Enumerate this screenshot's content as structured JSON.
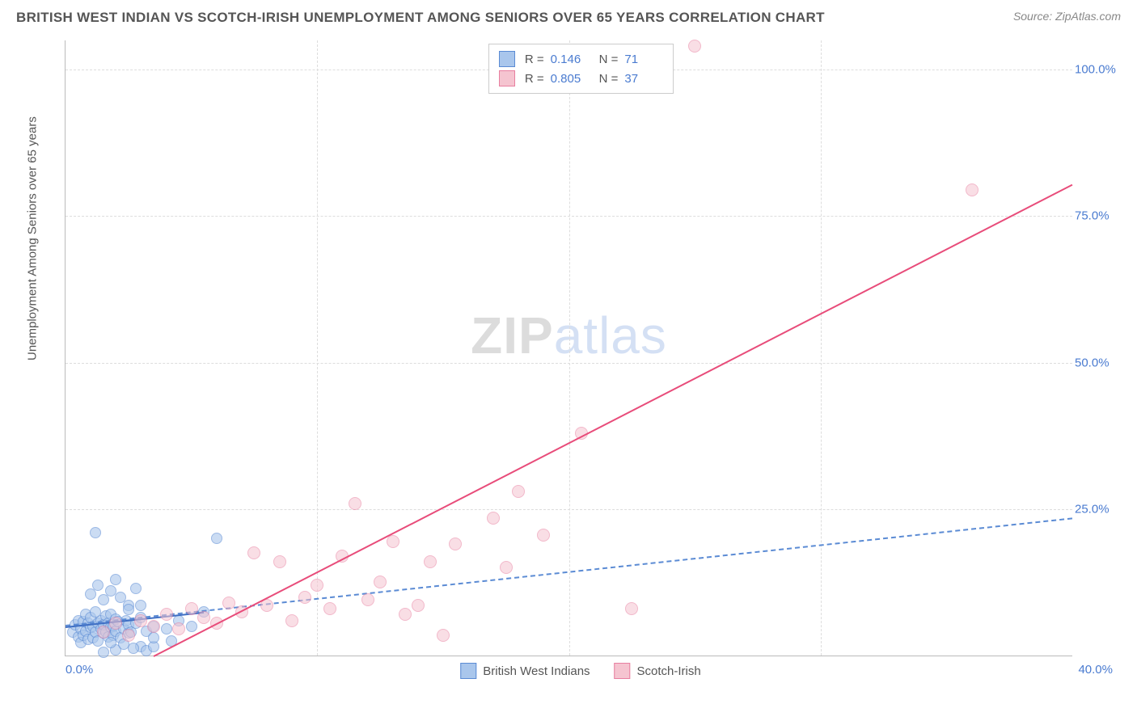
{
  "header": {
    "title": "BRITISH WEST INDIAN VS SCOTCH-IRISH UNEMPLOYMENT AMONG SENIORS OVER 65 YEARS CORRELATION CHART",
    "source_prefix": "Source: ",
    "source_name": "ZipAtlas.com"
  },
  "chart": {
    "type": "scatter",
    "ylabel": "Unemployment Among Seniors over 65 years",
    "xlim": [
      0,
      40
    ],
    "ylim": [
      0,
      105
    ],
    "background_color": "#ffffff",
    "grid_color": "#dddddd",
    "axis_color": "#bbbbbb",
    "tick_label_color": "#4a7bd0",
    "tick_fontsize": 15,
    "label_fontsize": 15,
    "yticks": [
      {
        "value": 25,
        "label": "25.0%"
      },
      {
        "value": 50,
        "label": "50.0%"
      },
      {
        "value": 75,
        "label": "75.0%"
      },
      {
        "value": 100,
        "label": "100.0%"
      }
    ],
    "xticks_origin": {
      "value": 0,
      "label": "0.0%"
    },
    "xticks_end": {
      "value": 40,
      "label": "40.0%"
    },
    "x_gridlines_at": [
      10,
      20,
      30
    ],
    "watermark": {
      "part1": "ZIP",
      "part2": "atlas"
    },
    "series": [
      {
        "key": "bwi",
        "label": "British West Indians",
        "fill_color": "#a9c6ec",
        "stroke_color": "#5b8bd4",
        "marker_radius": 7,
        "marker_opacity": 0.6,
        "trend": {
          "style": "dashed",
          "color": "#5b8bd4",
          "x0": 0,
          "y0": 5.2,
          "x1": 40,
          "y1": 23.5
        },
        "trend_solid_segment": {
          "style": "solid",
          "color": "#3f6fc4",
          "x0": 0,
          "y0": 5.0,
          "x1": 5.5,
          "y1": 7.5
        },
        "stats": {
          "R": "0.146",
          "N": "71"
        },
        "points": [
          [
            0.3,
            4.0
          ],
          [
            0.4,
            5.2
          ],
          [
            0.5,
            3.2
          ],
          [
            0.5,
            6.0
          ],
          [
            0.6,
            4.5
          ],
          [
            0.6,
            2.2
          ],
          [
            0.7,
            5.8
          ],
          [
            0.7,
            3.5
          ],
          [
            0.8,
            7.0
          ],
          [
            0.8,
            4.2
          ],
          [
            0.9,
            5.5
          ],
          [
            0.9,
            2.8
          ],
          [
            1.0,
            4.8
          ],
          [
            1.0,
            6.5
          ],
          [
            1.1,
            3.0
          ],
          [
            1.1,
            5.0
          ],
          [
            1.2,
            7.5
          ],
          [
            1.2,
            4.0
          ],
          [
            1.3,
            5.5
          ],
          [
            1.3,
            2.5
          ],
          [
            1.4,
            6.0
          ],
          [
            1.4,
            4.5
          ],
          [
            1.5,
            3.8
          ],
          [
            1.5,
            5.2
          ],
          [
            1.6,
            6.8
          ],
          [
            1.6,
            4.0
          ],
          [
            1.7,
            5.5
          ],
          [
            1.7,
            3.2
          ],
          [
            1.8,
            7.0
          ],
          [
            1.8,
            4.8
          ],
          [
            1.9,
            5.0
          ],
          [
            1.9,
            3.5
          ],
          [
            2.0,
            6.2
          ],
          [
            2.0,
            4.2
          ],
          [
            2.1,
            5.8
          ],
          [
            2.2,
            3.0
          ],
          [
            2.3,
            4.5
          ],
          [
            2.4,
            6.0
          ],
          [
            2.5,
            3.8
          ],
          [
            2.5,
            5.2
          ],
          [
            2.6,
            4.0
          ],
          [
            2.8,
            5.5
          ],
          [
            3.0,
            1.5
          ],
          [
            3.0,
            6.5
          ],
          [
            3.2,
            4.2
          ],
          [
            3.5,
            5.0
          ],
          [
            1.0,
            10.5
          ],
          [
            1.3,
            12.0
          ],
          [
            1.5,
            9.5
          ],
          [
            1.8,
            11.0
          ],
          [
            2.0,
            13.0
          ],
          [
            2.2,
            10.0
          ],
          [
            2.5,
            8.5
          ],
          [
            2.8,
            11.5
          ],
          [
            1.2,
            21.0
          ],
          [
            2.0,
            1.0
          ],
          [
            2.3,
            2.0
          ],
          [
            2.7,
            1.2
          ],
          [
            3.2,
            0.8
          ],
          [
            3.5,
            1.5
          ],
          [
            1.5,
            0.5
          ],
          [
            1.8,
            2.2
          ],
          [
            4.0,
            4.5
          ],
          [
            4.5,
            6.0
          ],
          [
            5.0,
            5.0
          ],
          [
            5.5,
            7.5
          ],
          [
            6.0,
            20.0
          ],
          [
            3.5,
            3.0
          ],
          [
            4.2,
            2.5
          ],
          [
            2.5,
            7.8
          ],
          [
            3.0,
            8.5
          ]
        ]
      },
      {
        "key": "si",
        "label": "Scotch-Irish",
        "fill_color": "#f5c4d0",
        "stroke_color": "#e87fa0",
        "marker_radius": 8,
        "marker_opacity": 0.55,
        "trend": {
          "style": "solid",
          "color": "#e84c7a",
          "x0": 3.5,
          "y0": 0,
          "x1": 40,
          "y1": 80.5
        },
        "stats": {
          "R": "0.805",
          "N": "37"
        },
        "points": [
          [
            1.5,
            4.0
          ],
          [
            2.0,
            5.5
          ],
          [
            2.5,
            3.5
          ],
          [
            3.0,
            6.0
          ],
          [
            3.5,
            5.0
          ],
          [
            4.0,
            7.0
          ],
          [
            4.5,
            4.5
          ],
          [
            5.0,
            8.0
          ],
          [
            5.5,
            6.5
          ],
          [
            6.0,
            5.5
          ],
          [
            6.5,
            9.0
          ],
          [
            7.0,
            7.5
          ],
          [
            7.5,
            17.5
          ],
          [
            8.0,
            8.5
          ],
          [
            8.5,
            16.0
          ],
          [
            9.0,
            6.0
          ],
          [
            9.5,
            10.0
          ],
          [
            10.0,
            12.0
          ],
          [
            10.5,
            8.0
          ],
          [
            11.0,
            17.0
          ],
          [
            11.5,
            26.0
          ],
          [
            12.0,
            9.5
          ],
          [
            12.5,
            12.5
          ],
          [
            13.0,
            19.5
          ],
          [
            13.5,
            7.0
          ],
          [
            14.0,
            8.5
          ],
          [
            14.5,
            16.0
          ],
          [
            15.0,
            3.5
          ],
          [
            15.5,
            19.0
          ],
          [
            17.0,
            23.5
          ],
          [
            17.5,
            15.0
          ],
          [
            18.0,
            28.0
          ],
          [
            19.0,
            20.5
          ],
          [
            20.5,
            38.0
          ],
          [
            22.5,
            8.0
          ],
          [
            25.0,
            104.0
          ],
          [
            36.0,
            79.5
          ]
        ]
      }
    ]
  },
  "legend_top": {
    "r_label": "R =",
    "n_label": "N ="
  },
  "legend_bottom": {
    "items": [
      {
        "series_key": "bwi"
      },
      {
        "series_key": "si"
      }
    ]
  }
}
